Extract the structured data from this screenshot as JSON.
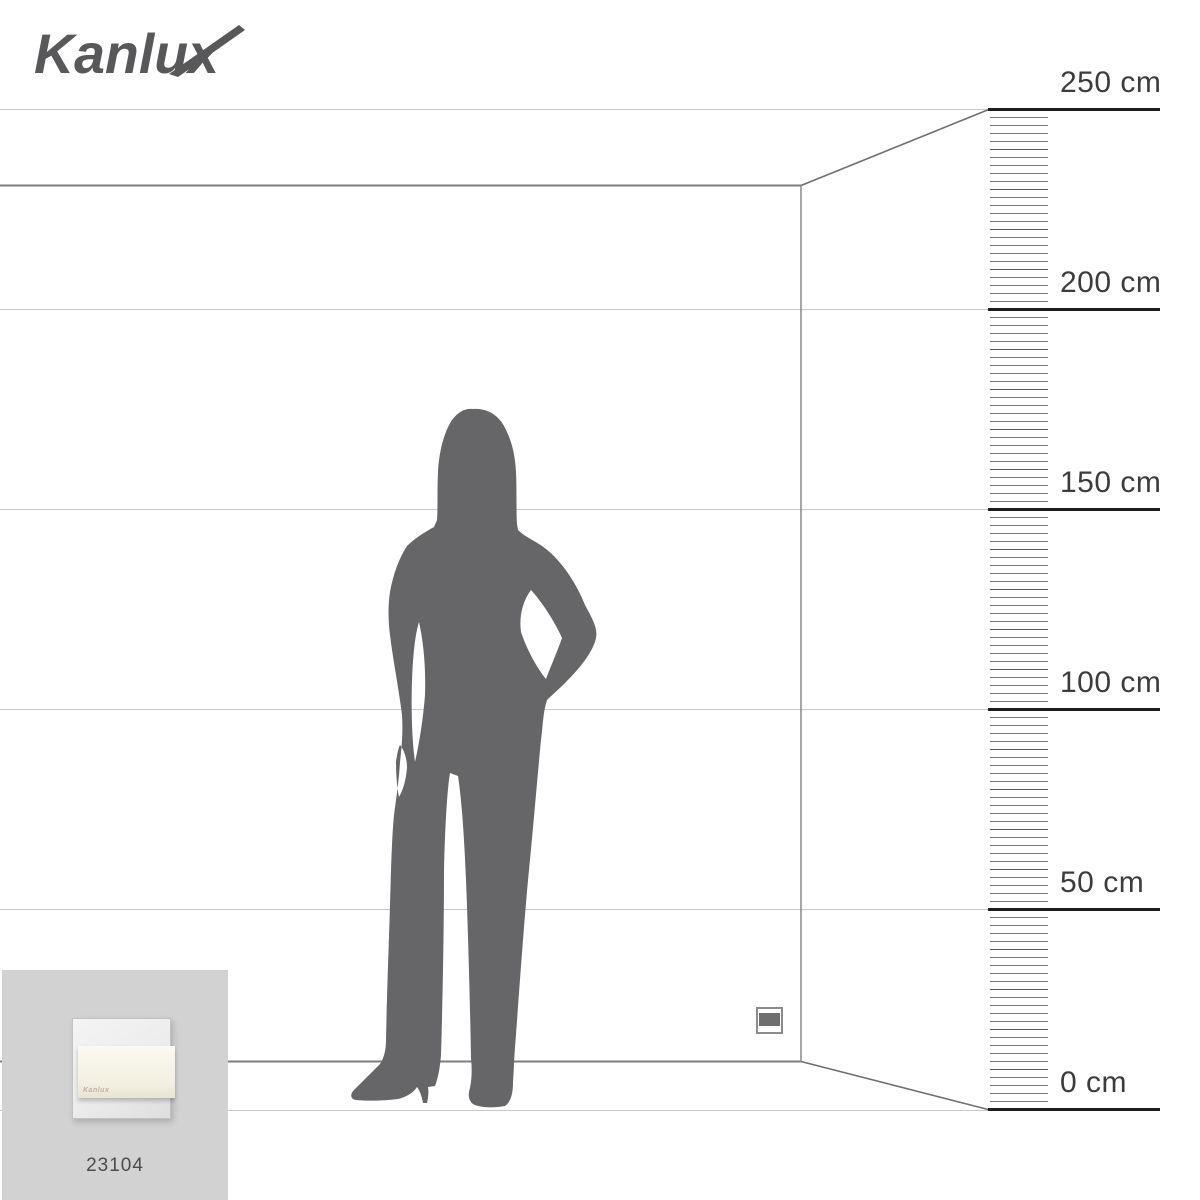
{
  "logo": {
    "text": "Kanlux"
  },
  "ruler": {
    "unit": "cm",
    "tick_step_cm": 2,
    "marks": [
      {
        "cm": 250,
        "label": "250 cm"
      },
      {
        "cm": 200,
        "label": "200 cm"
      },
      {
        "cm": 150,
        "label": "150 cm"
      },
      {
        "cm": 100,
        "label": "100 cm"
      },
      {
        "cm": 50,
        "label": "50 cm"
      },
      {
        "cm": 0,
        "label": "0 cm"
      }
    ]
  },
  "scene": {
    "wall_line_cms": [
      250,
      200,
      150,
      100,
      50,
      0
    ],
    "figure": "woman-silhouette",
    "figure_height_cm": 175,
    "mounted_product": {
      "type": "wall-step-light",
      "height_above_floor_cm": 22
    }
  },
  "product_card": {
    "code": "23104",
    "image": "taxi-square-wall-light"
  },
  "colors": {
    "silhouette": "#666668",
    "logo": "#58585a",
    "ruler_major": "#1e1e1e",
    "ruler_tick": "#6e6e6e",
    "ruler_label": "#3c3c3c",
    "wall_line_light": "#c9c9c9",
    "wall_edge_dark": "#7e7e7e",
    "card_background": "#d2d2d2",
    "product_code_text": "#4c4c4e"
  }
}
